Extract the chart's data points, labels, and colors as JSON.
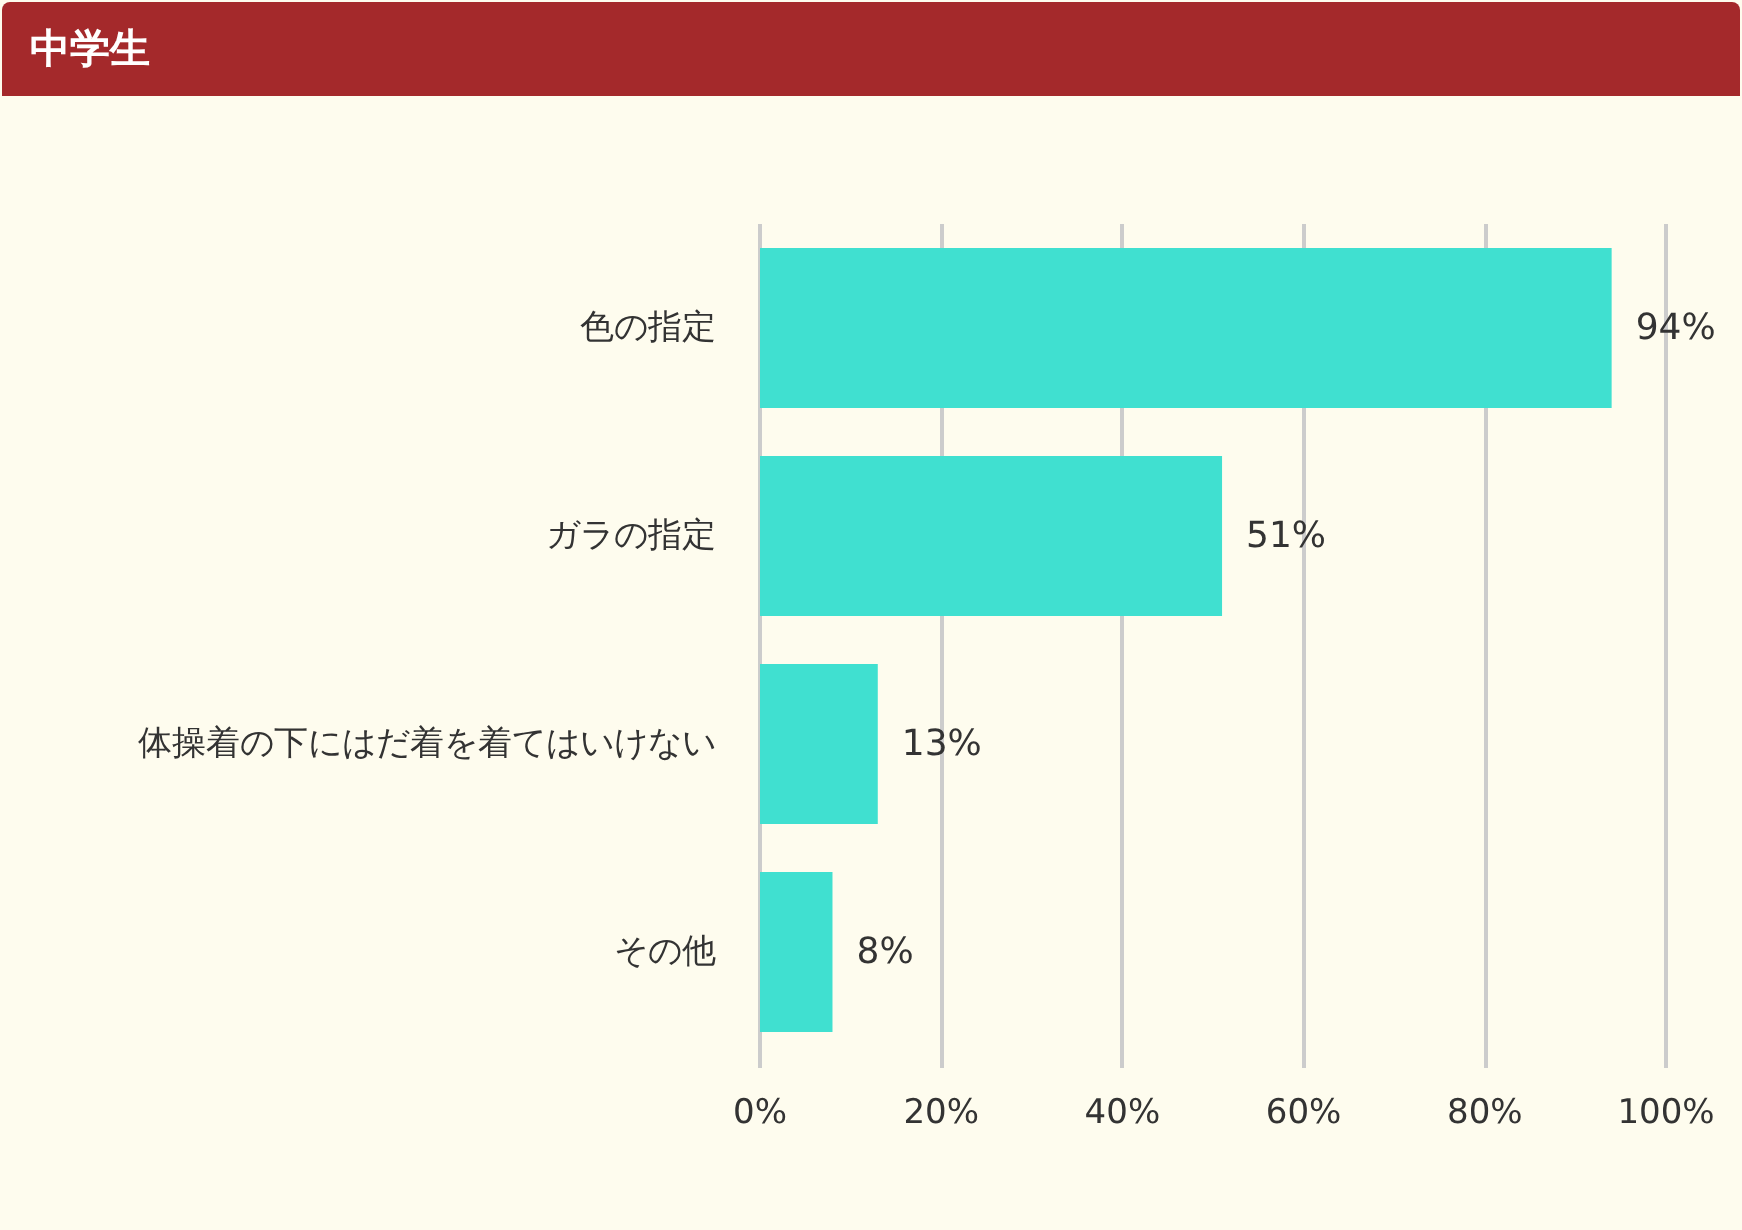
{
  "chart_data": {
    "type": "bar",
    "orientation": "horizontal",
    "title": "中学生",
    "categories": [
      "色の指定",
      "ガラの指定",
      "体操着の下にはだ着を着てはいけない",
      "その他"
    ],
    "values": [
      94,
      51,
      13,
      8
    ],
    "value_labels": [
      "94%",
      "51%",
      "13%",
      "8%"
    ],
    "color": "#40e0d0",
    "xlim": [
      0,
      100
    ],
    "xticks": [
      {
        "value": 0,
        "label": "0%"
      },
      {
        "value": 20,
        "label": "20%"
      },
      {
        "value": 40,
        "label": "40%"
      },
      {
        "value": 60,
        "label": "60%"
      },
      {
        "value": 80,
        "label": "80%"
      },
      {
        "value": 100,
        "label": "100%"
      }
    ],
    "grid": "x"
  }
}
